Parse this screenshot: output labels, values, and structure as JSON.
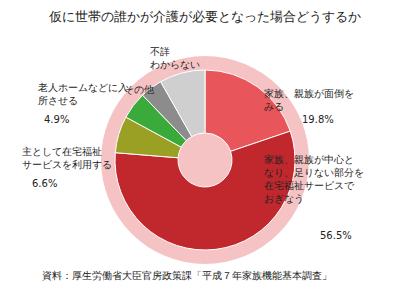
{
  "chart_data": {
    "type": "pie",
    "title": "仮に世帯の誰かが介護が必要となった場合どうするか",
    "source": "資料：厚生労働省大臣官房政策課「平成７年家族機能基本調査」",
    "categories": [
      "家族、親族が面倒を\nみる",
      "家族、親族が中心と\nなり、足りない部分を\n在宅福祉サービスで\nおぎなう",
      "主として在宅福祉\nサービスを利用する",
      "老人ホームなどに入\n所させる",
      "その他",
      "不詳\nわからない"
    ],
    "values": [
      19.8,
      56.5,
      6.6,
      4.9,
      4.0,
      8.2
    ],
    "value_labels": [
      "19.8%",
      "56.5%",
      "6.6%",
      "4.9%",
      null,
      null
    ],
    "colors": [
      "#e8555a",
      "#c0282e",
      "#9aa024",
      "#3aaa3a",
      "#8c8c8c",
      "#cfcfcf"
    ],
    "data_labels": true
  }
}
